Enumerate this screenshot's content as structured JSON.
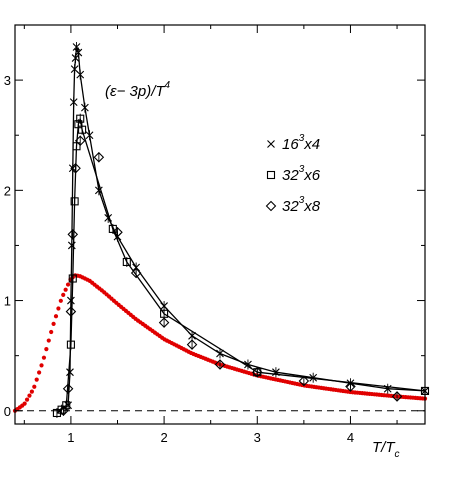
{
  "chart_data": {
    "type": "scatter",
    "title": "",
    "annotation": {
      "prefix": "(ε− 3p)/T",
      "exp": "4"
    },
    "xlabel": {
      "main": "T/T",
      "sub": "c"
    },
    "ylabel": "",
    "xlim": [
      0.4,
      4.8
    ],
    "ylim": [
      -0.12,
      3.5
    ],
    "x_ticks": [
      {
        "v": 1,
        "label": "1"
      },
      {
        "v": 2,
        "label": "2"
      },
      {
        "v": 3,
        "label": "3"
      },
      {
        "v": 4,
        "label": "4"
      }
    ],
    "y_ticks": [
      {
        "v": 0,
        "label": "0"
      },
      {
        "v": 1,
        "label": "1"
      },
      {
        "v": 2,
        "label": "2"
      },
      {
        "v": 3,
        "label": "3"
      }
    ],
    "zero_line": "dashed",
    "grid": false,
    "legend_position": "right",
    "legend": [
      {
        "marker": "cross",
        "pre": "16",
        "sup": "3",
        "post": "x4"
      },
      {
        "marker": "square",
        "pre": "32",
        "sup": "3",
        "post": "x6"
      },
      {
        "marker": "diamond",
        "pre": "32",
        "sup": "3",
        "post": "x8"
      }
    ],
    "colors": {
      "axis": "#000000",
      "model_curve": "#e00000"
    },
    "series": [
      {
        "marker": "cross",
        "x": [
          0.97,
          0.99,
          1.0,
          1.01,
          1.02,
          1.03,
          1.04,
          1.05,
          1.06,
          1.08,
          1.1,
          1.15,
          1.2,
          1.3,
          1.4,
          1.5,
          1.7,
          2.0,
          2.3,
          2.6,
          2.9,
          3.2,
          3.6,
          4.0,
          4.4,
          4.8
        ],
        "y": [
          0.05,
          0.35,
          1.0,
          1.5,
          2.2,
          2.8,
          3.1,
          3.2,
          3.3,
          3.25,
          3.05,
          2.75,
          2.5,
          2.0,
          1.75,
          1.58,
          1.3,
          0.95,
          0.68,
          0.52,
          0.42,
          0.35,
          0.3,
          0.25,
          0.2,
          0.18
        ]
      },
      {
        "marker": "square",
        "x": [
          0.85,
          0.9,
          0.95,
          1.0,
          1.02,
          1.04,
          1.06,
          1.08,
          1.1,
          1.12,
          1.45,
          1.6,
          2.0,
          3.0,
          4.8
        ],
        "y": [
          -0.02,
          0.01,
          0.05,
          0.6,
          1.2,
          1.9,
          2.4,
          2.6,
          2.65,
          2.55,
          1.65,
          1.35,
          0.88,
          0.35,
          0.18
        ]
      },
      {
        "marker": "diamond",
        "x": [
          0.92,
          0.97,
          1.0,
          1.02,
          1.05,
          1.1,
          1.3,
          1.5,
          1.7,
          2.0,
          2.3,
          2.6,
          3.0,
          3.5,
          4.0,
          4.5
        ],
        "y": [
          0.0,
          0.2,
          0.9,
          1.6,
          2.2,
          2.45,
          2.3,
          1.62,
          1.25,
          0.8,
          0.6,
          0.42,
          0.35,
          0.27,
          0.22,
          0.13
        ]
      }
    ],
    "fit_curves": [
      {
        "x": [
          0.97,
          0.99,
          1.0,
          1.01,
          1.02,
          1.03,
          1.04,
          1.05,
          1.06,
          1.08,
          1.1,
          1.15,
          1.2,
          1.3,
          1.4,
          1.5,
          1.7,
          2.0,
          2.3,
          2.6,
          2.9,
          3.2,
          3.6,
          4.0,
          4.4,
          4.8
        ],
        "y": [
          0.05,
          0.35,
          1.0,
          1.5,
          2.2,
          2.8,
          3.1,
          3.2,
          3.3,
          3.25,
          3.05,
          2.75,
          2.5,
          2.0,
          1.75,
          1.58,
          1.3,
          0.95,
          0.68,
          0.52,
          0.42,
          0.35,
          0.3,
          0.25,
          0.2,
          0.18
        ]
      },
      {
        "x": [
          0.85,
          0.9,
          0.95,
          1.0,
          1.02,
          1.04,
          1.06,
          1.08,
          1.1,
          1.12,
          1.45,
          1.6,
          2.0,
          3.0,
          4.8
        ],
        "y": [
          -0.02,
          0.01,
          0.05,
          0.6,
          1.2,
          1.9,
          2.4,
          2.6,
          2.65,
          2.55,
          1.65,
          1.35,
          0.88,
          0.35,
          0.18
        ]
      }
    ],
    "model_curve": {
      "x": [
        0.4,
        0.5,
        0.6,
        0.7,
        0.8,
        0.9,
        1.0,
        1.05,
        1.1,
        1.2,
        1.35,
        1.5,
        1.7,
        2.0,
        2.3,
        2.6,
        3.0,
        3.5,
        4.0,
        4.5,
        4.8
      ],
      "y": [
        0.0,
        0.06,
        0.2,
        0.45,
        0.75,
        1.02,
        1.2,
        1.23,
        1.22,
        1.18,
        1.08,
        0.97,
        0.83,
        0.65,
        0.52,
        0.42,
        0.32,
        0.23,
        0.17,
        0.13,
        0.11
      ]
    }
  }
}
